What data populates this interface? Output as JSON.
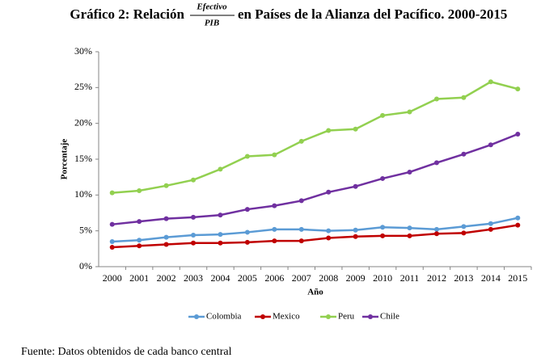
{
  "chart_data": {
    "type": "line",
    "title": {
      "before": "Gráfico 2: Relación",
      "numerator": "Efectivo",
      "denominator": "PIB",
      "after": "en Países de la Alianza del Pacífico. 2000-2015"
    },
    "x_label": "Año",
    "y_label": "Porcentaje",
    "categories": [
      "2000",
      "2001",
      "2002",
      "2003",
      "2004",
      "2005",
      "2006",
      "2007",
      "2008",
      "2009",
      "2010",
      "2011",
      "2012",
      "2013",
      "2014",
      "2015"
    ],
    "series": [
      {
        "name": "Colombia",
        "color": "#5b9bd5",
        "values": [
          3.5,
          3.7,
          4.1,
          4.4,
          4.5,
          4.8,
          5.2,
          5.2,
          5.0,
          5.1,
          5.5,
          5.4,
          5.2,
          5.6,
          6.0,
          6.8
        ]
      },
      {
        "name": "Mexico",
        "color": "#c00000",
        "values": [
          2.7,
          2.9,
          3.1,
          3.3,
          3.3,
          3.4,
          3.6,
          3.6,
          4.0,
          4.2,
          4.3,
          4.3,
          4.6,
          4.7,
          5.2,
          5.8
        ]
      },
      {
        "name": "Peru",
        "color": "#92d050",
        "values": [
          10.3,
          10.6,
          11.3,
          12.1,
          13.6,
          15.4,
          15.6,
          17.5,
          19.0,
          19.2,
          21.1,
          21.6,
          23.4,
          23.6,
          25.8,
          24.8
        ]
      },
      {
        "name": "Chile",
        "color": "#7030a0",
        "values": [
          5.9,
          6.3,
          6.7,
          6.9,
          7.2,
          8.0,
          8.5,
          9.2,
          10.4,
          11.2,
          12.3,
          13.2,
          14.5,
          15.7,
          17.0,
          18.5
        ]
      }
    ],
    "ylim": [
      0,
      30
    ],
    "yticks": [
      {
        "value": 0,
        "label": "0%"
      },
      {
        "value": 5,
        "label": "5%"
      },
      {
        "value": 10,
        "label": "10%"
      },
      {
        "value": 15,
        "label": "15%"
      },
      {
        "value": 20,
        "label": "20%"
      },
      {
        "value": 25,
        "label": "25%"
      },
      {
        "value": 30,
        "label": "30%"
      }
    ],
    "legend": "bottom"
  },
  "source": "Fuente: Datos obtenidos de cada banco central"
}
